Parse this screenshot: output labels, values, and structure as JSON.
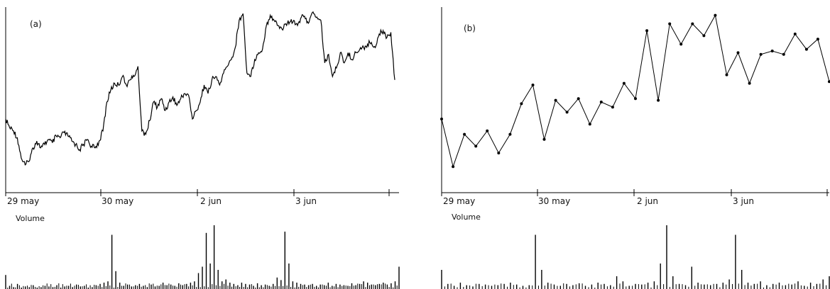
{
  "chart_data": [
    {
      "type": "line",
      "panel_label": "(a)",
      "series_style": "continuous-line",
      "x_tick_labels": [
        "29 may",
        "30 may",
        "2 jun",
        "3 jun"
      ],
      "volume_label": "Volume",
      "price_values": [
        0.35,
        0.3,
        0.28,
        0.24,
        0.12,
        0.08,
        0.1,
        0.18,
        0.22,
        0.18,
        0.2,
        0.23,
        0.21,
        0.25,
        0.24,
        0.27,
        0.25,
        0.22,
        0.2,
        0.17,
        0.2,
        0.23,
        0.19,
        0.18,
        0.22,
        0.28,
        0.45,
        0.52,
        0.56,
        0.55,
        0.6,
        0.55,
        0.58,
        0.6,
        0.66,
        0.28,
        0.26,
        0.34,
        0.45,
        0.42,
        0.47,
        0.4,
        0.45,
        0.48,
        0.43,
        0.47,
        0.5,
        0.49,
        0.35,
        0.4,
        0.45,
        0.55,
        0.5,
        0.58,
        0.6,
        0.55,
        0.62,
        0.66,
        0.7,
        0.77,
        0.93,
        0.97,
        0.62,
        0.6,
        0.7,
        0.74,
        0.76,
        0.9,
        0.96,
        0.93,
        0.9,
        0.88,
        0.91,
        0.92,
        0.93,
        0.9,
        0.95,
        0.94,
        0.92,
        0.98,
        0.95,
        0.93,
        0.68,
        0.73,
        0.6,
        0.65,
        0.74,
        0.68,
        0.74,
        0.7,
        0.74,
        0.76,
        0.77,
        0.79,
        0.8,
        0.77,
        0.85,
        0.87,
        0.83,
        0.86,
        0.58
      ],
      "volume_values": [
        0.22,
        0.05,
        0.03,
        0.08,
        0.02,
        0.04,
        0.03,
        0.06,
        0.02,
        0.03,
        0.05,
        0.04,
        0.03,
        0.06,
        0.02,
        0.04,
        0.05,
        0.03,
        0.07,
        0.04,
        0.05,
        0.02,
        0.03,
        0.06,
        0.08,
        0.1,
        0.12,
        0.85,
        0.28,
        0.1,
        0.05,
        0.07,
        0.04,
        0.06,
        0.08,
        0.05,
        0.03,
        0.07,
        0.04,
        0.05,
        0.1,
        0.06,
        0.07,
        0.05,
        0.09,
        0.06,
        0.08,
        0.1,
        0.12,
        0.25,
        0.35,
        0.88,
        0.4,
        1.0,
        0.3,
        0.12,
        0.15,
        0.1,
        0.08,
        0.06,
        0.1,
        0.08,
        0.07,
        0.05,
        0.09,
        0.06,
        0.07,
        0.05,
        0.08,
        0.18,
        0.14,
        0.9,
        0.4,
        0.12,
        0.1,
        0.08,
        0.07,
        0.06,
        0.08,
        0.05,
        0.07,
        0.06,
        0.1,
        0.05,
        0.08,
        0.07,
        0.06,
        0.05,
        0.09,
        0.06,
        0.08,
        0.12,
        0.1,
        0.07,
        0.06,
        0.08,
        0.1,
        0.07,
        0.09,
        0.12,
        0.35
      ]
    },
    {
      "type": "line",
      "panel_label": "(b)",
      "series_style": "line-with-markers",
      "x_tick_labels": [
        "29 may",
        "30 may",
        "2 jun",
        "3 jun"
      ],
      "volume_label": "Volume",
      "price_values": [
        0.35,
        0.07,
        0.26,
        0.19,
        0.28,
        0.15,
        0.26,
        0.44,
        0.55,
        0.23,
        0.46,
        0.39,
        0.47,
        0.32,
        0.45,
        0.42,
        0.56,
        0.47,
        0.87,
        0.46,
        0.91,
        0.79,
        0.91,
        0.84,
        0.96,
        0.61,
        0.74,
        0.56,
        0.73,
        0.75,
        0.73,
        0.85,
        0.76,
        0.82,
        0.57
      ],
      "volume_values": [
        0.3,
        0.08,
        0.05,
        0.1,
        0.06,
        0.04,
        0.08,
        0.07,
        0.05,
        0.06,
        0.08,
        0.1,
        0.07,
        0.05,
        0.06,
        0.85,
        0.3,
        0.1,
        0.07,
        0.05,
        0.08,
        0.06,
        0.09,
        0.05,
        0.07,
        0.1,
        0.08,
        0.06,
        0.2,
        0.12,
        0.05,
        0.08,
        0.07,
        0.1,
        0.12,
        0.4,
        1.0,
        0.2,
        0.08,
        0.06,
        0.35,
        0.1,
        0.07,
        0.06,
        0.08,
        0.1,
        0.15,
        0.85,
        0.3,
        0.1,
        0.08,
        0.12,
        0.06,
        0.08,
        0.1,
        0.06,
        0.07,
        0.12,
        0.05,
        0.1,
        0.08,
        0.15,
        0.2
      ]
    }
  ]
}
